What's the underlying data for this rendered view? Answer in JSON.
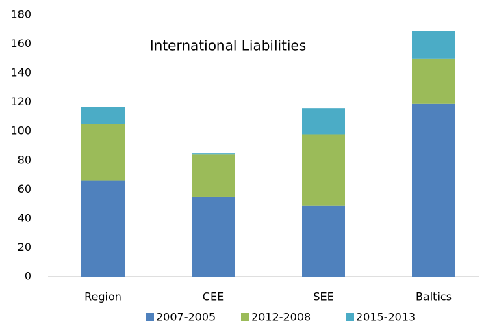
{
  "chart_data": {
    "type": "stacked_bar",
    "title": "International Liabilities",
    "categories": [
      "Region",
      "CEE",
      "SEE",
      "Baltics"
    ],
    "series": [
      {
        "name": "2007-2005",
        "color": "#4f81bd",
        "values": [
          66,
          55,
          49,
          119
        ]
      },
      {
        "name": "2012-2008",
        "color": "#9bbb59",
        "values": [
          39,
          29,
          49,
          31
        ]
      },
      {
        "name": "2015-2013",
        "color": "#4bacc6",
        "values": [
          12,
          1,
          18,
          19
        ]
      }
    ],
    "ylim": [
      0,
      180
    ],
    "yticks": [
      0,
      20,
      40,
      60,
      80,
      100,
      120,
      140,
      160,
      180
    ],
    "grid": false,
    "legend": "bottom"
  }
}
